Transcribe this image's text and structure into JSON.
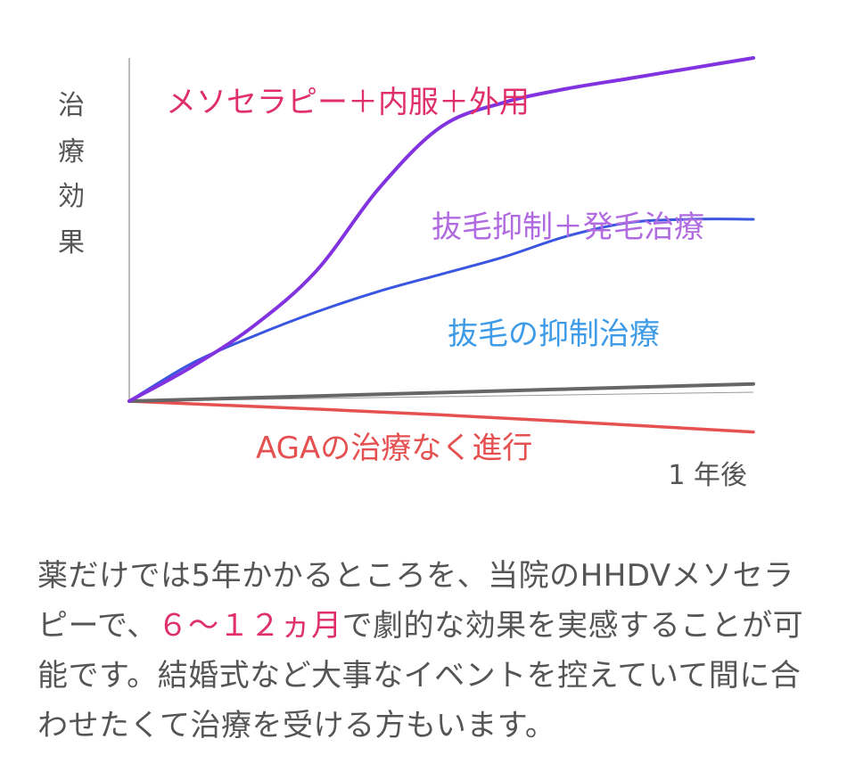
{
  "chart_data": {
    "type": "line",
    "xlabel": "1 年後",
    "ylabel_chars": [
      "治",
      "療",
      "効",
      "果"
    ],
    "xlim": [
      0,
      1
    ],
    "ylim": [
      -10,
      100
    ],
    "series": [
      {
        "name": "メソセラピー＋内服＋外用",
        "color": "#8133e0",
        "label_color": "#e0306a",
        "x": [
          0,
          0.1,
          0.2,
          0.3,
          0.4,
          0.5,
          0.6,
          0.7,
          0.8,
          0.9,
          1.0
        ],
        "y": [
          0,
          10,
          22,
          38,
          62,
          80,
          87,
          91,
          94,
          97,
          100
        ]
      },
      {
        "name": "抜毛抑制＋発毛治療",
        "color": "#3a55e0",
        "label_color": "#b06be0",
        "x": [
          0,
          0.1,
          0.2,
          0.3,
          0.4,
          0.5,
          0.6,
          0.7,
          0.8,
          0.9,
          1.0
        ],
        "y": [
          0,
          11,
          19,
          26,
          32,
          37,
          42,
          48,
          52,
          53,
          53
        ]
      },
      {
        "name": "抜毛の抑制治療",
        "color": "#666666",
        "label_color": "#3d9be8",
        "x": [
          0,
          0.5,
          1.0
        ],
        "y": [
          0,
          2.5,
          5
        ]
      },
      {
        "name": "AGAの治療なく進行",
        "color": "#e55050",
        "label_color": "#e55050",
        "x": [
          0,
          0.5,
          1.0
        ],
        "y": [
          0,
          -4,
          -9
        ]
      }
    ]
  },
  "description": {
    "part1": "薬だけでは5年かかるところを、当院のHHDVメソセラピーで、",
    "highlight": "６〜１２ヵ月",
    "part2": "で劇的な効果を実感することが可能です。結婚式など大事なイベントを控えていて間に合わせたくて治療を受ける方もいます。"
  }
}
